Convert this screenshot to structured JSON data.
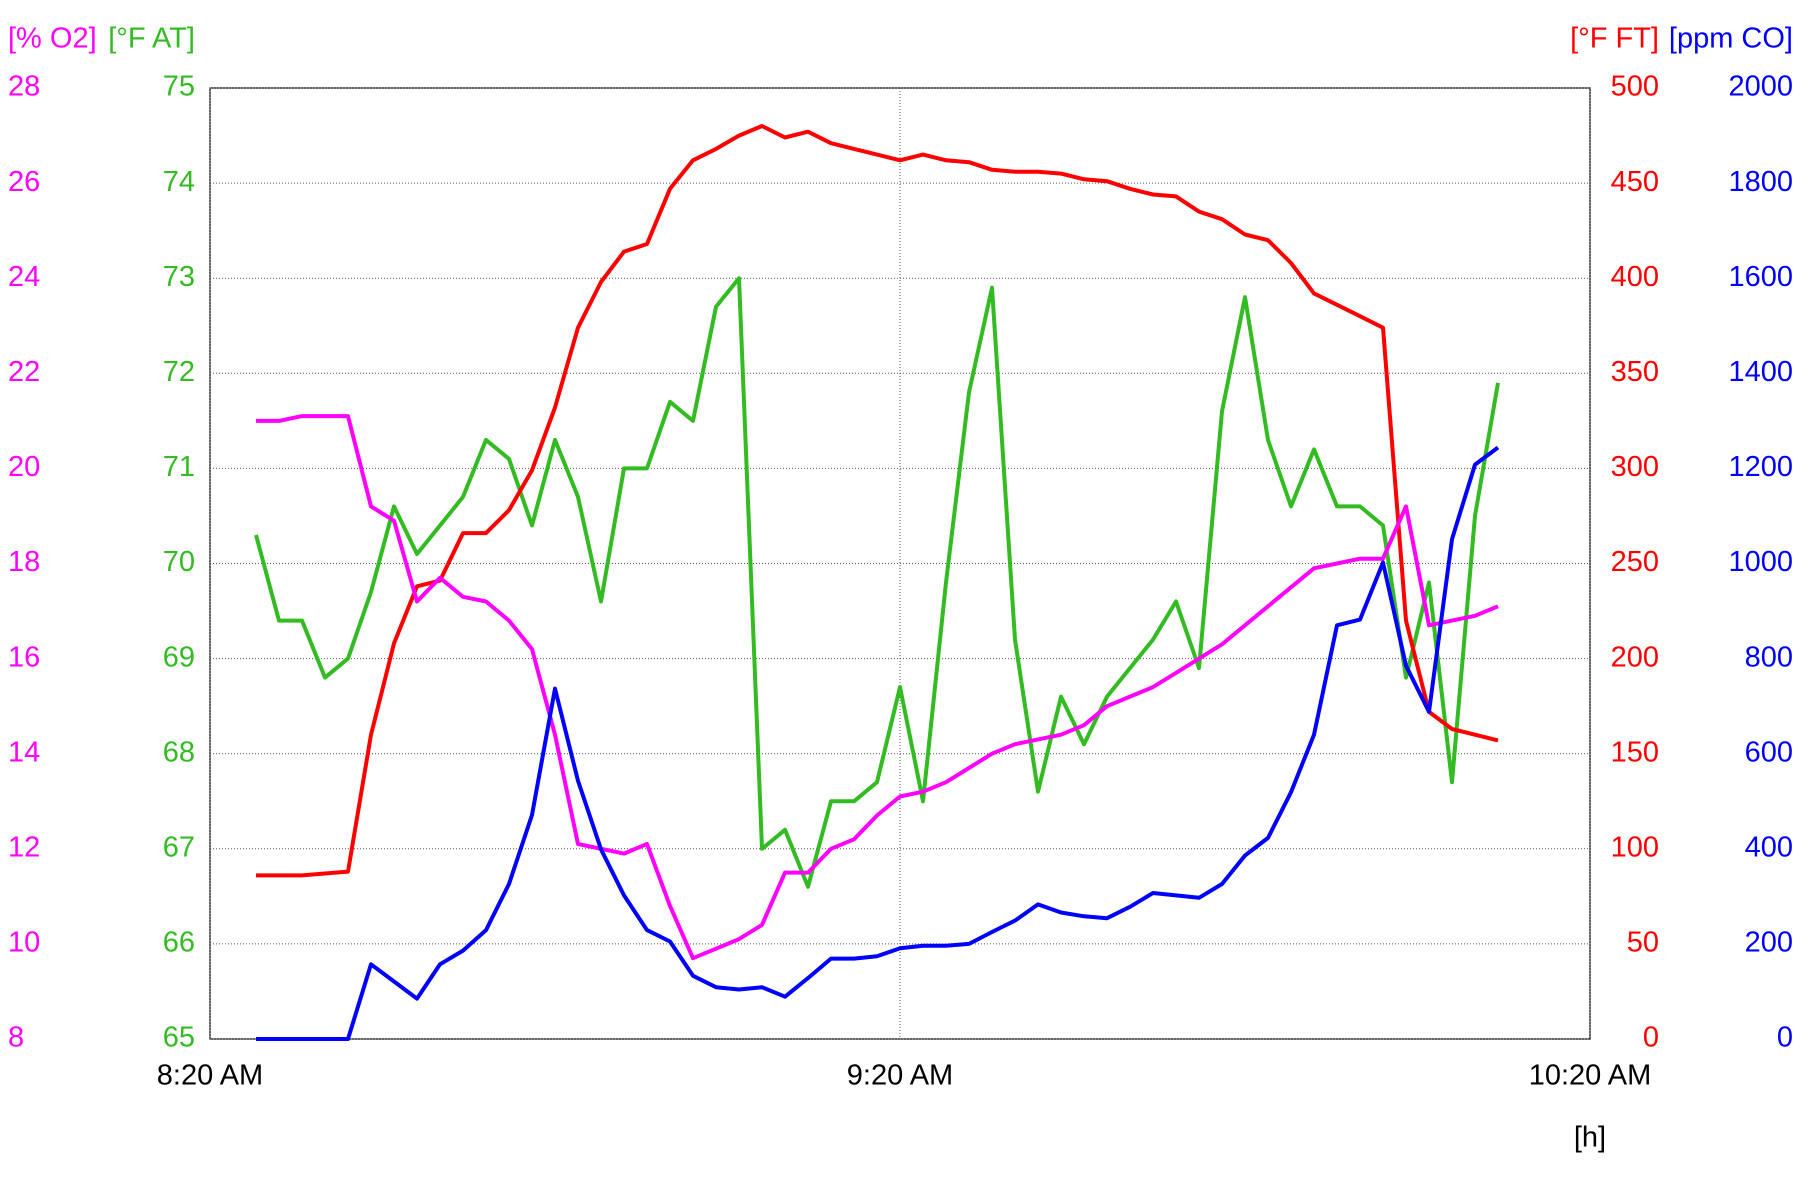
{
  "chart_data": {
    "type": "line",
    "x_label": "[h]",
    "xlim": [
      "08:20",
      "10:20"
    ],
    "xticks": [
      {
        "value": "08:20",
        "label": "8:20 AM"
      },
      {
        "value": "09:20",
        "label": "9:20 AM"
      },
      {
        "value": "10:20",
        "label": "10:20 AM"
      }
    ],
    "grid": true,
    "y_axes": [
      {
        "label": "[% O2]",
        "color": "#ff00ff",
        "side": "left",
        "lim": [
          8,
          28
        ],
        "ticks": [
          8,
          10,
          12,
          14,
          16,
          18,
          20,
          22,
          24,
          26,
          28
        ]
      },
      {
        "label": "[°F AT]",
        "color": "#33bb22",
        "side": "left",
        "lim": [
          65,
          75
        ],
        "ticks": [
          65,
          66,
          67,
          68,
          69,
          70,
          71,
          72,
          73,
          74,
          75
        ]
      },
      {
        "label": "[°F FT]",
        "color": "#ff0000",
        "side": "right",
        "lim": [
          0,
          500
        ],
        "ticks": [
          0,
          50,
          100,
          150,
          200,
          250,
          300,
          350,
          400,
          450,
          500
        ]
      },
      {
        "label": "[ppm CO]",
        "color": "#0000ff",
        "side": "right",
        "lim": [
          0,
          2000
        ],
        "ticks": [
          0,
          200,
          400,
          600,
          800,
          1000,
          1200,
          1400,
          1600,
          1800,
          2000
        ]
      }
    ],
    "x": [
      "08:24",
      "08:26",
      "08:28",
      "08:30",
      "08:32",
      "08:34",
      "08:36",
      "08:38",
      "08:40",
      "08:42",
      "08:44",
      "08:46",
      "08:48",
      "08:50",
      "08:52",
      "08:54",
      "08:56",
      "08:58",
      "09:00",
      "09:02",
      "09:04",
      "09:06",
      "09:08",
      "09:10",
      "09:12",
      "09:14",
      "09:16",
      "09:18",
      "09:20",
      "09:22",
      "09:24",
      "09:26",
      "09:28",
      "09:30",
      "09:32",
      "09:34",
      "09:36",
      "09:38",
      "09:40",
      "09:42",
      "09:44",
      "09:46",
      "09:48",
      "09:50",
      "09:52",
      "09:54",
      "09:56",
      "09:58",
      "10:00",
      "10:02",
      "10:04",
      "10:06",
      "10:08",
      "10:10",
      "10:12"
    ],
    "series": [
      {
        "name": "AT",
        "axis": 1,
        "color": "#33bb22",
        "values": [
          70.3,
          69.4,
          69.4,
          68.8,
          69.0,
          69.7,
          70.6,
          70.1,
          70.4,
          70.7,
          71.3,
          71.1,
          70.4,
          71.3,
          70.7,
          69.6,
          71.0,
          71.0,
          71.7,
          71.5,
          72.7,
          73.0,
          67.0,
          67.2,
          66.6,
          67.5,
          67.5,
          67.7,
          68.7,
          67.5,
          69.8,
          71.8,
          72.9,
          69.2,
          67.6,
          68.6,
          68.1,
          68.6,
          68.9,
          69.2,
          69.6,
          68.9,
          71.6,
          72.8,
          71.3,
          70.6,
          71.2,
          70.6,
          70.6,
          70.4,
          68.8,
          69.8,
          67.7,
          70.5,
          71.9
        ]
      },
      {
        "name": "FT",
        "axis": 2,
        "color": "#ff0000",
        "values": [
          86,
          86,
          86,
          87,
          88,
          160,
          208,
          238,
          241,
          266,
          266,
          278,
          299,
          332,
          374,
          398,
          414,
          418,
          447,
          462,
          468,
          475,
          480,
          474,
          477,
          471,
          468,
          465,
          462,
          465,
          462,
          461,
          457,
          456,
          456,
          455,
          452,
          451,
          447,
          444,
          443,
          435,
          431,
          423,
          420,
          408,
          392,
          386,
          380,
          374,
          220,
          172,
          163,
          160,
          157
        ]
      },
      {
        "name": "O2",
        "axis": 0,
        "color": "#ff00ff",
        "values": [
          21.0,
          21.0,
          21.1,
          21.1,
          21.1,
          19.2,
          18.9,
          17.2,
          17.7,
          17.3,
          17.2,
          16.8,
          16.2,
          14.4,
          12.1,
          12.0,
          11.9,
          12.1,
          10.8,
          9.7,
          9.9,
          10.1,
          10.4,
          11.5,
          11.5,
          12.0,
          12.2,
          12.7,
          13.1,
          13.2,
          13.4,
          13.7,
          14.0,
          14.2,
          14.3,
          14.4,
          14.6,
          15.0,
          15.2,
          15.4,
          15.7,
          16.0,
          16.3,
          16.7,
          17.1,
          17.5,
          17.9,
          18.0,
          18.1,
          18.1,
          19.2,
          16.7,
          16.8,
          16.9,
          17.1
        ]
      },
      {
        "name": "CO",
        "axis": 3,
        "color": "#0000ff",
        "values": [
          0,
          0,
          0,
          0,
          0,
          157,
          121,
          85,
          157,
          186,
          229,
          326,
          471,
          737,
          543,
          399,
          302,
          229,
          205,
          133,
          109,
          104,
          109,
          89,
          128,
          169,
          169,
          174,
          191,
          196,
          196,
          200,
          225,
          249,
          283,
          266,
          258,
          254,
          278,
          307,
          302,
          297,
          326,
          386,
          423,
          519,
          640,
          870,
          882,
          1002,
          785,
          688,
          1051,
          1208,
          1244
        ]
      }
    ]
  }
}
